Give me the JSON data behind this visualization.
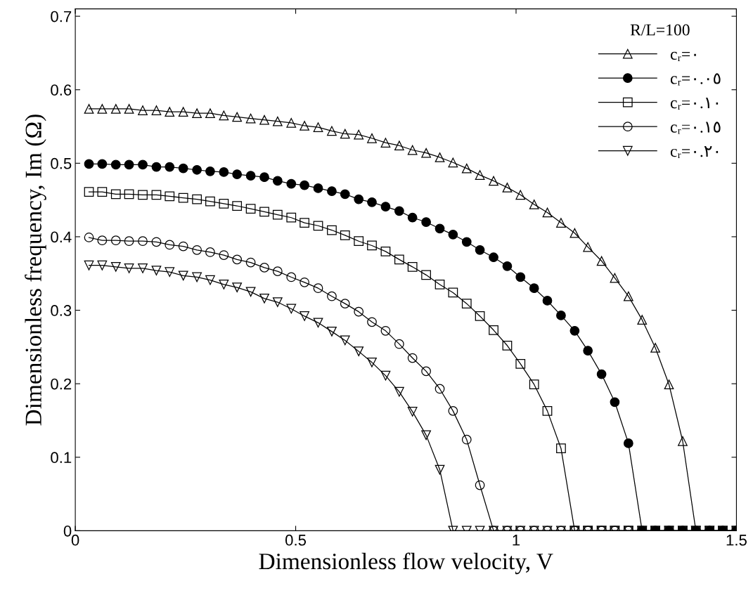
{
  "chart_data": {
    "type": "line",
    "xlabel": "Dimensionless flow velocity, V",
    "ylabel": "Dimensionless frequency, Im (Ω)",
    "legend_title": "R/L=100",
    "x": [
      0.031,
      0.061,
      0.092,
      0.122,
      0.153,
      0.184,
      0.214,
      0.245,
      0.276,
      0.306,
      0.337,
      0.367,
      0.398,
      0.429,
      0.459,
      0.49,
      0.52,
      0.551,
      0.582,
      0.612,
      0.643,
      0.673,
      0.704,
      0.735,
      0.765,
      0.796,
      0.827,
      0.857,
      0.888,
      0.918,
      0.949,
      0.98,
      1.01,
      1.041,
      1.071,
      1.102,
      1.133,
      1.163,
      1.194,
      1.224,
      1.255,
      1.286,
      1.316,
      1.347,
      1.378,
      1.408,
      1.439,
      1.469,
      1.5
    ],
    "series": [
      {
        "name": "cᵣ=٠",
        "color": "#000000",
        "marker": "triangle",
        "values": [
          0.574,
          0.574,
          0.574,
          0.574,
          0.572,
          0.572,
          0.57,
          0.57,
          0.568,
          0.568,
          0.565,
          0.563,
          0.561,
          0.559,
          0.557,
          0.555,
          0.551,
          0.549,
          0.544,
          0.54,
          0.539,
          0.534,
          0.528,
          0.524,
          0.518,
          0.514,
          0.508,
          0.501,
          0.493,
          0.484,
          0.476,
          0.467,
          0.457,
          0.444,
          0.433,
          0.419,
          0.405,
          0.386,
          0.367,
          0.344,
          0.319,
          0.287,
          0.249,
          0.199,
          0.122,
          0,
          0,
          0,
          0
        ]
      },
      {
        "name": "cᵣ=٠.٠٥",
        "color": "#000000",
        "marker": "circle",
        "values": [
          0.499,
          0.499,
          0.498,
          0.498,
          0.498,
          0.495,
          0.495,
          0.493,
          0.491,
          0.489,
          0.488,
          0.485,
          0.483,
          0.481,
          0.476,
          0.472,
          0.47,
          0.466,
          0.462,
          0.458,
          0.451,
          0.447,
          0.441,
          0.435,
          0.426,
          0.42,
          0.411,
          0.403,
          0.393,
          0.382,
          0.372,
          0.36,
          0.345,
          0.33,
          0.313,
          0.293,
          0.272,
          0.245,
          0.213,
          0.175,
          0.119,
          0,
          0,
          0,
          0,
          0,
          0,
          0,
          0
        ]
      },
      {
        "name": "cᵣ=٠.١٠",
        "color": "#000000",
        "marker": "square",
        "values": [
          0.461,
          0.461,
          0.458,
          0.458,
          0.457,
          0.457,
          0.455,
          0.453,
          0.451,
          0.448,
          0.445,
          0.442,
          0.438,
          0.434,
          0.43,
          0.426,
          0.419,
          0.415,
          0.409,
          0.402,
          0.394,
          0.388,
          0.38,
          0.369,
          0.359,
          0.348,
          0.335,
          0.324,
          0.309,
          0.292,
          0.273,
          0.252,
          0.227,
          0.199,
          0.163,
          0.112,
          0,
          0,
          0,
          0,
          0,
          0,
          0,
          0,
          0,
          0,
          0,
          0,
          0
        ]
      },
      {
        "name": "cᵣ=٠.١٥",
        "color": "#000000",
        "marker": "circle",
        "values": [
          0.399,
          0.395,
          0.395,
          0.394,
          0.394,
          0.393,
          0.389,
          0.387,
          0.382,
          0.379,
          0.375,
          0.369,
          0.365,
          0.358,
          0.353,
          0.345,
          0.338,
          0.33,
          0.319,
          0.309,
          0.298,
          0.284,
          0.272,
          0.254,
          0.235,
          0.217,
          0.193,
          0.163,
          0.124,
          0.062,
          0,
          0,
          0,
          0,
          0,
          0,
          0,
          0,
          0,
          0,
          0,
          0,
          0,
          0,
          0,
          0,
          0,
          0,
          0
        ]
      },
      {
        "name": "cᵣ=٠.٢٠",
        "color": "#000000",
        "marker": "triangle_down",
        "values": [
          0.361,
          0.361,
          0.359,
          0.357,
          0.357,
          0.354,
          0.352,
          0.347,
          0.345,
          0.341,
          0.335,
          0.331,
          0.325,
          0.316,
          0.311,
          0.302,
          0.292,
          0.283,
          0.271,
          0.259,
          0.244,
          0.229,
          0.211,
          0.189,
          0.162,
          0.13,
          0.083,
          0,
          0,
          0,
          0,
          0,
          0,
          0,
          0,
          0,
          0,
          0,
          0,
          0,
          0,
          0,
          0,
          0,
          0,
          0,
          0,
          0,
          0
        ]
      }
    ],
    "xlim": [
      0,
      1.5
    ],
    "xticks": [
      0,
      0.5,
      1,
      1.5
    ],
    "ylim": [
      0,
      0.71
    ],
    "yticks": [
      0,
      0.1,
      0.2,
      0.3,
      0.4,
      0.5,
      0.6,
      0.7
    ],
    "grid": false,
    "legend": "top right",
    "line_style": "solid"
  }
}
